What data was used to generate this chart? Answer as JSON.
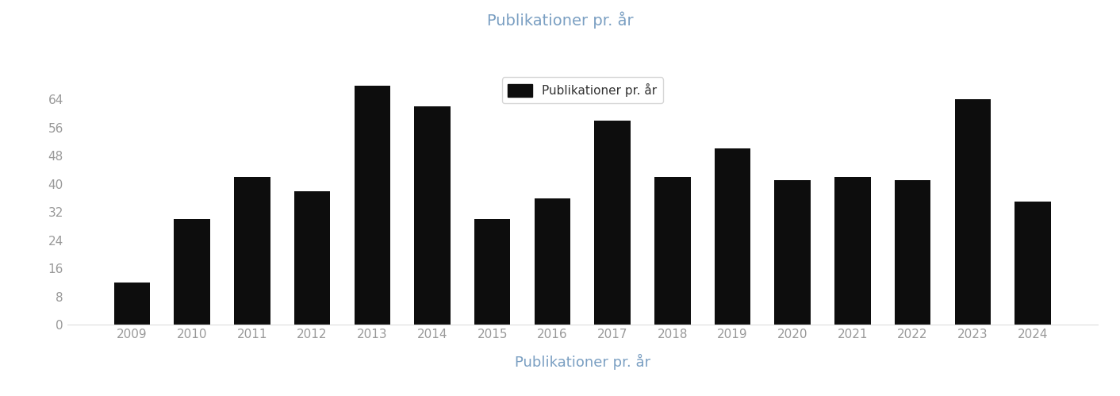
{
  "categories": [
    2009,
    2010,
    2011,
    2012,
    2013,
    2014,
    2015,
    2016,
    2017,
    2018,
    2019,
    2020,
    2021,
    2022,
    2023,
    2024
  ],
  "values": [
    12,
    30,
    42,
    38,
    68,
    62,
    30,
    36,
    58,
    42,
    50,
    41,
    42,
    41,
    64,
    35
  ],
  "bar_color": "#0d0d0d",
  "title": "Publikationer pr. år",
  "title_color": "#7a9fc2",
  "xlabel": "Publikationer pr. år",
  "xlabel_color": "#7a9fc2",
  "yticks": [
    0,
    8,
    16,
    24,
    32,
    40,
    48,
    56,
    64
  ],
  "ylim": [
    0,
    72
  ],
  "legend_label": "Publikationer pr. år",
  "background_color": "#ffffff",
  "title_fontsize": 14,
  "xlabel_fontsize": 13,
  "tick_color": "#999999",
  "bar_width": 0.6
}
